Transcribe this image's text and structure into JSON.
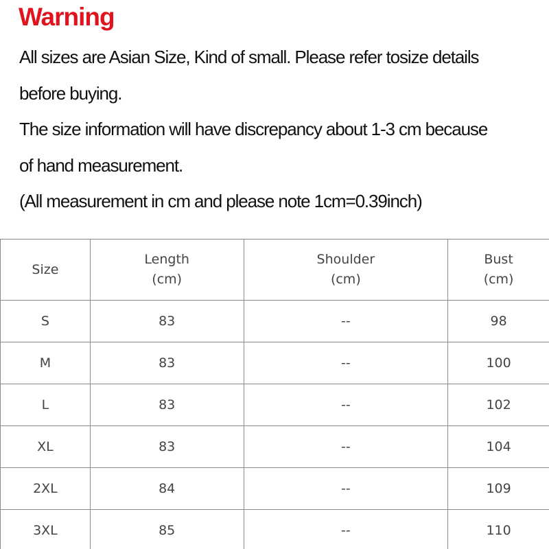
{
  "warning": {
    "title": "Warning",
    "lines": [
      "All sizes are Asian Size, Kind of small. Please refer tosize details",
      "before buying.",
      "The size information will have discrepancy about 1-3 cm because",
      "of hand measurement.",
      "(All measurement in cm and please note 1cm=0.39inch)"
    ]
  },
  "table": {
    "header": [
      "Size",
      "Length\n(cm)",
      "Shoulder\n(cm)",
      "Bust\n(cm)"
    ],
    "rows": [
      [
        "S",
        "83",
        "--",
        "98"
      ],
      [
        "M",
        "83",
        "--",
        "100"
      ],
      [
        "L",
        "83",
        "--",
        "102"
      ],
      [
        "XL",
        "83",
        "--",
        "104"
      ],
      [
        "2XL",
        "84",
        "--",
        "109"
      ],
      [
        "3XL",
        "85",
        "--",
        "110"
      ]
    ]
  }
}
